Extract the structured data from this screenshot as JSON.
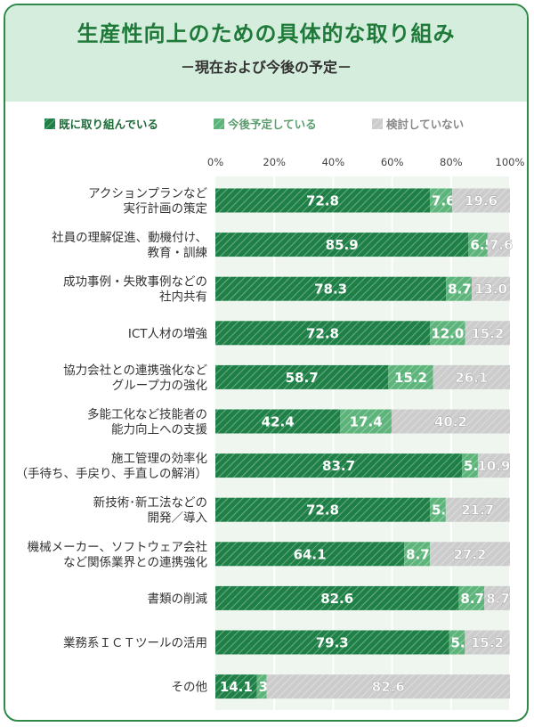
{
  "title": "生産性向上のための具体的な取り組み",
  "subtitle": "－現在および今後の予定－",
  "colors": {
    "s0": "#1e8046",
    "s1": "#5db47a",
    "s2": "#cccccc",
    "plotbg": "#eef6ef",
    "frame": "#2f8a4a"
  },
  "chart_data": {
    "type": "bar",
    "orientation": "horizontal",
    "stacked": true,
    "title": "生産性向上のための具体的な取り組み",
    "subtitle": "－現在および今後の予定－",
    "xlim": [
      0,
      100
    ],
    "x_ticks": [
      "0%",
      "20%",
      "40%",
      "60%",
      "80%",
      "100%"
    ],
    "legend_position": "top",
    "categories": [
      [
        "アクションプランなど",
        "実行計画の策定"
      ],
      [
        "社員の理解促進、動機付け、",
        "教育・訓練"
      ],
      [
        "成功事例・失敗事例などの",
        "社内共有"
      ],
      [
        "ICT人材の増強"
      ],
      [
        "協力会社との連携強化など",
        "グループ力の強化"
      ],
      [
        "多能工化など技能者の",
        "能力向上への支援"
      ],
      [
        "施工管理の効率化",
        "（手待ち、手戻り、手直しの解消）"
      ],
      [
        "新技術･新工法などの",
        "開発／導入"
      ],
      [
        "機械メーカー、ソフトウェア会社",
        "など関係業界との連携強化"
      ],
      [
        "書類の削減"
      ],
      [
        "業務系ＩＣＴツールの活用"
      ],
      [
        "その他"
      ]
    ],
    "series": [
      {
        "name": "既に取り組んでいる",
        "values": [
          72.8,
          85.9,
          78.3,
          72.8,
          58.7,
          42.4,
          83.7,
          72.8,
          64.1,
          82.6,
          79.3,
          14.1
        ]
      },
      {
        "name": "今後予定している",
        "values": [
          7.6,
          6.5,
          8.7,
          12.0,
          15.2,
          17.4,
          5.4,
          5.4,
          8.7,
          8.7,
          5.4,
          3.3
        ]
      },
      {
        "name": "検討していない",
        "values": [
          19.6,
          7.6,
          13.0,
          15.2,
          26.1,
          40.2,
          10.9,
          21.7,
          27.2,
          8.7,
          15.2,
          82.6
        ]
      }
    ]
  }
}
